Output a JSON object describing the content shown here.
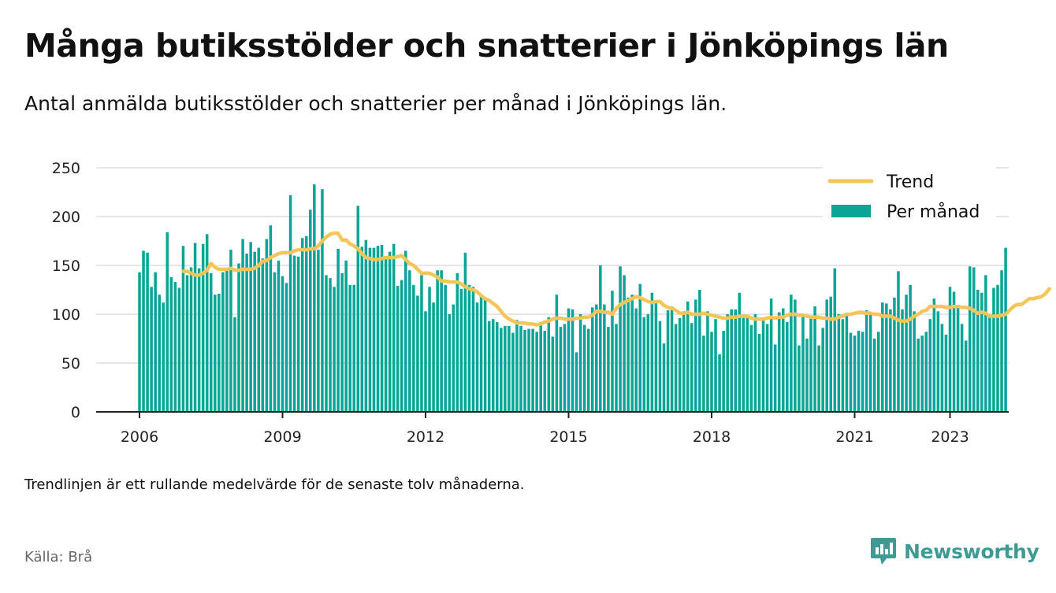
{
  "title": "Många butiksstölder och snatterier i Jönköpings län",
  "subtitle": "Antal anmälda butiksstölder och snatterier per månad i Jönköpings län.",
  "note": "Trendlinjen är ett rullande medelvärde för de senaste tolv månaderna.",
  "source": "Källa: Brå",
  "brand": {
    "name": "Newsworthy",
    "icon": "newsworthy-logo-icon"
  },
  "colors": {
    "bars": "#0aa597",
    "trend": "#f6c559",
    "grid": "#dddddd",
    "axis": "#222222"
  },
  "chart_data": {
    "type": "bar",
    "title": "Många butiksstölder och snatterier i Jönköpings län",
    "xlabel": "",
    "ylabel": "",
    "ylim": [
      0,
      250
    ],
    "yticks": [
      0,
      50,
      100,
      150,
      200,
      250
    ],
    "xticks": [
      "2006",
      "2009",
      "2012",
      "2015",
      "2018",
      "2021",
      "2023"
    ],
    "grid": true,
    "legend_position": "top-right",
    "legend": [
      "Trend",
      "Per månad"
    ],
    "start": "2006-01",
    "series": [
      {
        "name": "Per månad",
        "type": "bar",
        "values": [
          143,
          165,
          163,
          128,
          143,
          120,
          112,
          184,
          138,
          133,
          127,
          170,
          140,
          148,
          173,
          147,
          172,
          182,
          142,
          120,
          121,
          143,
          145,
          166,
          97,
          152,
          177,
          162,
          174,
          164,
          168,
          157,
          177,
          191,
          143,
          155,
          139,
          132,
          222,
          160,
          159,
          178,
          180,
          207,
          233,
          166,
          228,
          140,
          137,
          128,
          167,
          142,
          155,
          130,
          130,
          211,
          169,
          176,
          168,
          168,
          170,
          171,
          158,
          164,
          172,
          129,
          135,
          165,
          145,
          130,
          119,
          140,
          103,
          128,
          112,
          145,
          145,
          130,
          100,
          110,
          142,
          126,
          163,
          130,
          128,
          112,
          120,
          116,
          93,
          95,
          92,
          86,
          88,
          88,
          81,
          94,
          88,
          84,
          85,
          85,
          82,
          92,
          83,
          97,
          77,
          120,
          87,
          90,
          106,
          105,
          61,
          100,
          89,
          85,
          107,
          110,
          150,
          110,
          87,
          124,
          90,
          149,
          140,
          117,
          120,
          106,
          131,
          97,
          100,
          122,
          112,
          93,
          70,
          104,
          108,
          90,
          96,
          103,
          113,
          91,
          115,
          125,
          78,
          103,
          82,
          95,
          59,
          83,
          100,
          105,
          105,
          122,
          98,
          99,
          89,
          100,
          80,
          95,
          90,
          116,
          69,
          102,
          106,
          92,
          120,
          115,
          68,
          100,
          75,
          97,
          108,
          68,
          86,
          115,
          118,
          147,
          100,
          95,
          100,
          81,
          78,
          83,
          82,
          104,
          100,
          75,
          82,
          112,
          111,
          105,
          117,
          144,
          105,
          120,
          130,
          103,
          75,
          78,
          82,
          95,
          116,
          103,
          90,
          79,
          128,
          123,
          109,
          90,
          73,
          149,
          148,
          125,
          122,
          140,
          97,
          127,
          130,
          145,
          168
        ]
      },
      {
        "name": "Trend",
        "type": "line",
        "start_index": 11,
        "values": [
          144,
          144,
          142,
          140,
          140,
          142,
          145,
          152,
          148,
          146,
          146,
          146,
          147,
          145,
          145,
          146,
          146,
          146,
          147,
          150,
          154,
          155,
          158,
          160,
          162,
          163,
          163,
          163,
          165,
          166,
          166,
          166,
          167,
          167,
          170,
          175,
          179,
          182,
          183,
          183,
          176,
          176,
          172,
          170,
          167,
          162,
          158,
          157,
          156,
          156,
          157,
          158,
          158,
          158,
          159,
          160,
          156,
          152,
          150,
          146,
          142,
          142,
          142,
          140,
          138,
          134,
          134,
          133,
          133,
          133,
          131,
          128,
          126,
          125,
          123,
          119,
          116,
          114,
          111,
          108,
          103,
          98,
          95,
          93,
          91,
          91,
          91,
          90,
          90,
          89,
          90,
          92,
          93,
          95,
          96,
          96,
          95,
          95,
          95,
          96,
          96,
          97,
          97,
          99,
          103,
          103,
          102,
          102,
          100,
          106,
          110,
          112,
          114,
          116,
          118,
          117,
          115,
          113,
          112,
          113,
          113,
          109,
          107,
          106,
          104,
          101,
          101,
          102,
          100,
          100,
          100,
          101,
          100,
          99,
          98,
          97,
          96,
          96,
          97,
          97,
          98,
          98,
          98,
          96,
          95,
          95,
          95,
          96,
          97,
          96,
          97,
          97,
          99,
          100,
          100,
          99,
          99,
          98,
          97,
          97,
          97,
          96,
          96,
          95,
          95,
          97,
          98,
          100,
          100,
          101,
          102,
          102,
          101,
          101,
          100,
          100,
          98,
          98,
          98,
          96,
          94,
          93,
          93,
          95,
          98,
          100,
          103,
          104,
          108,
          108,
          108,
          108,
          107,
          107,
          108,
          108,
          107,
          107,
          106,
          104,
          101,
          102,
          101,
          98,
          98,
          98,
          99,
          100,
          104,
          108,
          110,
          110,
          113,
          116,
          116,
          117,
          118,
          121,
          126
        ]
      }
    ]
  }
}
